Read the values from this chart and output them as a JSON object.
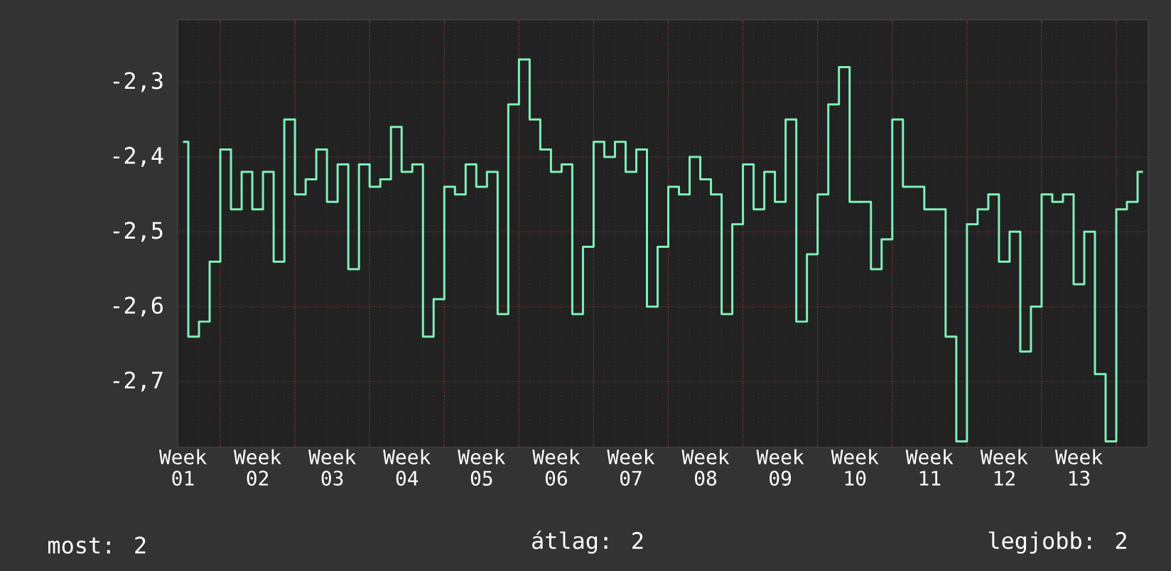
{
  "chart_data": {
    "type": "step",
    "categories": [
      "Week 01",
      null,
      null,
      null,
      null,
      null,
      null,
      "Week 02",
      null,
      null,
      null,
      null,
      null,
      null,
      "Week 03",
      null,
      null,
      null,
      null,
      null,
      null,
      "Week 04",
      null,
      null,
      null,
      null,
      null,
      null,
      "Week 05",
      null,
      null,
      null,
      null,
      null,
      null,
      "Week 06",
      null,
      null,
      null,
      null,
      null,
      null,
      "Week 07",
      null,
      null,
      null,
      null,
      null,
      null,
      "Week 08",
      null,
      null,
      null,
      null,
      null,
      null,
      "Week 09",
      null,
      null,
      null,
      null,
      null,
      null,
      "Week 10",
      null,
      null,
      null,
      null,
      null,
      null,
      "Week 11",
      null,
      null,
      null,
      null,
      null,
      null,
      "Week 12",
      null,
      null,
      null,
      null,
      null,
      null,
      "Week 13",
      null,
      null,
      null,
      null,
      null,
      null
    ],
    "series": [
      {
        "color": "#80f0b8",
        "values": [
          -2.38,
          -2.64,
          -2.62,
          -2.54,
          -2.39,
          -2.47,
          -2.42,
          -2.47,
          -2.42,
          -2.54,
          -2.35,
          -2.45,
          -2.43,
          -2.39,
          -2.46,
          -2.41,
          -2.55,
          -2.41,
          -2.44,
          -2.43,
          -2.36,
          -2.42,
          -2.41,
          -2.64,
          -2.59,
          -2.44,
          -2.45,
          -2.41,
          -2.44,
          -2.42,
          -2.61,
          -2.33,
          -2.27,
          -2.35,
          -2.39,
          -2.42,
          -2.41,
          -2.61,
          -2.52,
          -2.38,
          -2.4,
          -2.38,
          -2.42,
          -2.39,
          -2.6,
          -2.52,
          -2.44,
          -2.45,
          -2.4,
          -2.43,
          -2.45,
          -2.61,
          -2.49,
          -2.41,
          -2.47,
          -2.42,
          -2.46,
          -2.35,
          -2.62,
          -2.53,
          -2.45,
          -2.33,
          -2.28,
          -2.46,
          -2.46,
          -2.55,
          -2.51,
          -2.35,
          -2.44,
          -2.44,
          -2.47,
          -2.47,
          -2.64,
          -2.78,
          -2.49,
          -2.47,
          -2.45,
          -2.54,
          -2.5,
          -2.66,
          -2.6,
          -2.45,
          -2.46,
          -2.45,
          -2.57,
          -2.5,
          -2.69,
          -2.78,
          -2.47,
          -2.46,
          -2.42
        ]
      }
    ],
    "ylim": [
      -2.788,
      -2.217
    ],
    "yticks": [
      {
        "value": -2.3,
        "label": "-2,3"
      },
      {
        "value": -2.4,
        "label": "-2,4"
      },
      {
        "value": -2.5,
        "label": "-2,5"
      },
      {
        "value": -2.6,
        "label": "-2,6"
      },
      {
        "value": -2.7,
        "label": "-2,7"
      }
    ],
    "grid": true,
    "annotations": [
      "most: 2",
      "átlag: 2",
      "legjobb: 2"
    ]
  }
}
